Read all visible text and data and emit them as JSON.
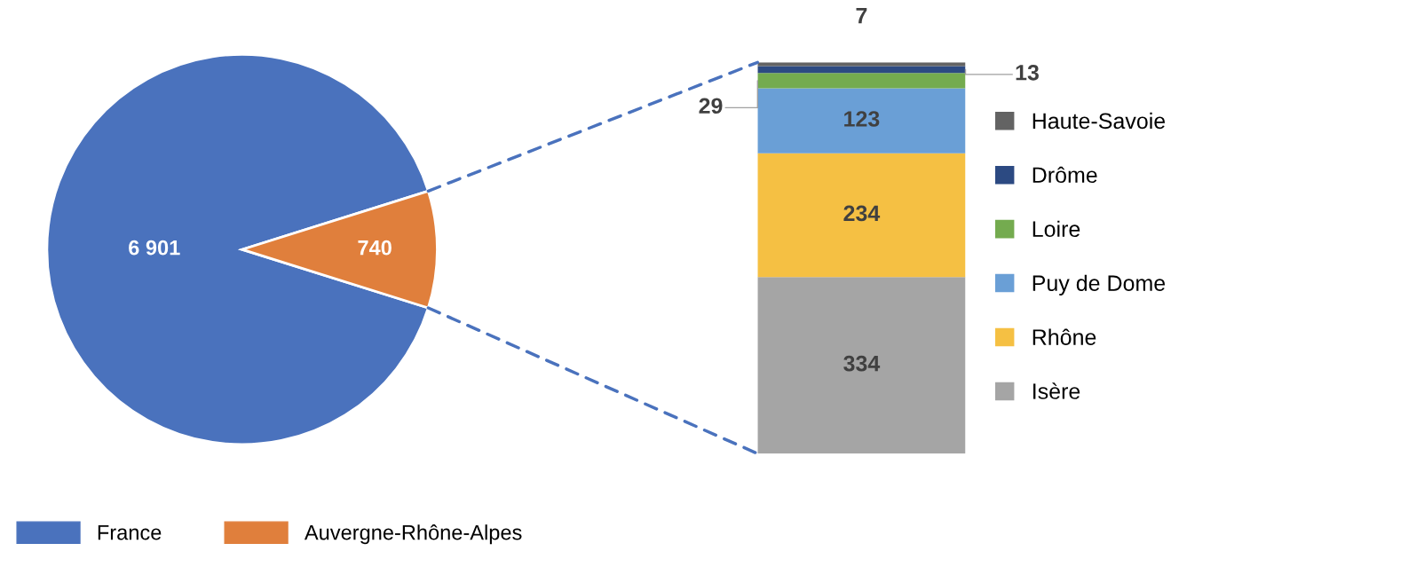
{
  "chart_data": [
    {
      "type": "pie",
      "categories": [
        "France",
        "Auvergne-Rhône-Alpes"
      ],
      "values": [
        6901,
        740
      ],
      "colors": [
        "#4a72bd",
        "#e07f3c"
      ],
      "value_labels": [
        "6 901",
        "740"
      ],
      "legend": "bottom"
    },
    {
      "type": "bar",
      "stacked": true,
      "categories": [
        null
      ],
      "data_labels": true,
      "legend": "right",
      "series": [
        {
          "name": "Isère",
          "color": "#a5a5a5",
          "values": [
            334
          ]
        },
        {
          "name": "Rhône",
          "color": "#f5c043",
          "values": [
            234
          ]
        },
        {
          "name": "Puy de Dome",
          "color": "#6a9fd6",
          "values": [
            123
          ]
        },
        {
          "name": "Loire",
          "color": "#74ab4f",
          "values": [
            29
          ]
        },
        {
          "name": "Drôme",
          "color": "#2c4a82",
          "values": [
            13
          ]
        },
        {
          "name": "Haute-Savoie",
          "color": "#636363",
          "values": [
            7
          ]
        }
      ]
    }
  ]
}
